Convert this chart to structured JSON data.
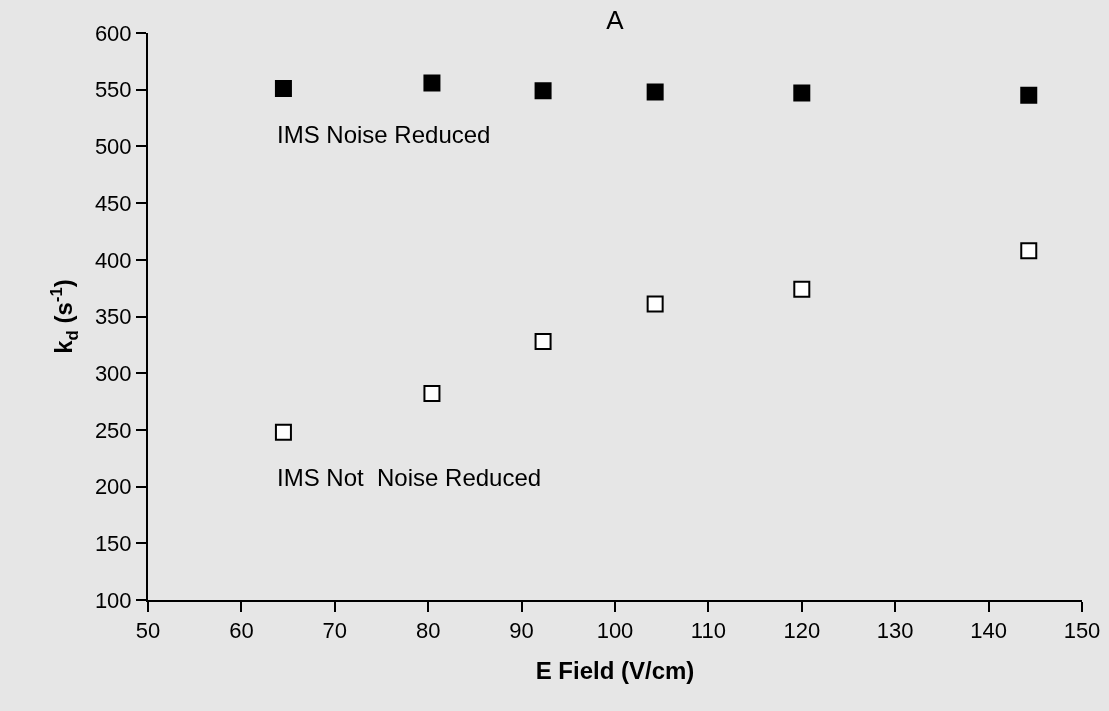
{
  "chart_data": {
    "type": "scatter",
    "title": "A",
    "xlabel": "E Field (V/cm)",
    "ylabel": "k$_{d}$ (s$^{-1}$)",
    "xlim": [
      50,
      150
    ],
    "xticks": [
      50,
      60,
      70,
      80,
      90,
      100,
      110,
      120,
      130,
      140,
      150
    ],
    "ylim": [
      100,
      600
    ],
    "yticks": [
      100,
      150,
      200,
      250,
      300,
      350,
      400,
      450,
      500,
      550,
      600
    ],
    "grid": false,
    "legend": false,
    "marker": "square",
    "series": [
      {
        "name": "IMS Noise Reduced",
        "color": "#000000",
        "x": [
          64.5,
          80.4,
          92.3,
          104.3,
          120,
          144.3
        ],
        "values": [
          551,
          556,
          549,
          548,
          547,
          545
        ]
      },
      {
        "name": "IMS Not  Noise Reduced",
        "color": "#ffffff",
        "x": [
          64.5,
          80.4,
          92.3,
          104.3,
          120,
          144.3
        ],
        "values": [
          248,
          282,
          328,
          361,
          374,
          408
        ]
      }
    ]
  }
}
